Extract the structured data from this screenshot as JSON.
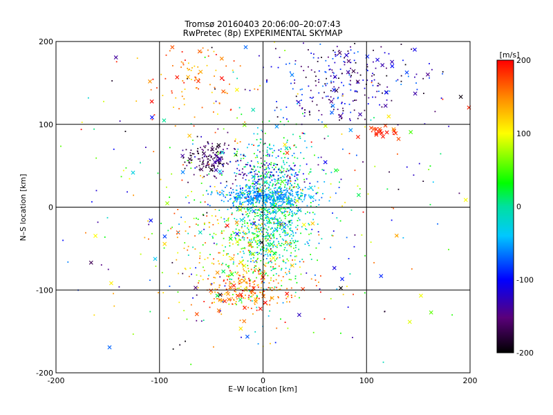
{
  "chart_data": {
    "type": "scatter",
    "title": "Tromsø 20160403 20:06:00–20:07:43",
    "subtitle": "RwPretec (8p) EXPERIMENTAL SKYMAP",
    "xlabel": "E–W location [km]",
    "ylabel": "N–S location [km]",
    "xlim": [
      -200,
      200
    ],
    "ylim": [
      -200,
      200
    ],
    "xticks": [
      -200,
      -100,
      0,
      100,
      200
    ],
    "yticks": [
      -200,
      -100,
      0,
      100,
      200
    ],
    "grid_lines": {
      "x": [
        -100,
        0,
        100
      ],
      "y": [
        -100,
        0,
        100
      ]
    },
    "colorbar": {
      "label": "[m/s]",
      "min": -200,
      "max": 200,
      "ticks": [
        -200,
        -100,
        0,
        100,
        200
      ],
      "colormap": "rainbow: black → purple → blue → cyan → green → yellow → orange → red"
    },
    "clusters": [
      {
        "cx": 10,
        "cy": 0,
        "sx": 18,
        "sy": 40,
        "n": 900,
        "vel": [
          -70,
          50
        ],
        "cross_frac": 0.03
      },
      {
        "cx": 0,
        "cy": 12,
        "sx": 22,
        "sy": 6,
        "n": 350,
        "vel": [
          -75,
          -35
        ],
        "cross_frac": 0.03
      },
      {
        "cx": -50,
        "cy": 60,
        "sx": 12,
        "sy": 9,
        "n": 160,
        "vel": [
          -200,
          -130
        ],
        "cross_frac": 0.08
      },
      {
        "cx": 75,
        "cy": 155,
        "sx": 38,
        "sy": 30,
        "n": 280,
        "vel": [
          -200,
          -60
        ],
        "cross_frac": 0.12
      },
      {
        "cx": -65,
        "cy": 160,
        "sx": 28,
        "sy": 25,
        "n": 90,
        "vel": [
          110,
          200
        ],
        "cross_frac": 0.15
      },
      {
        "cx": -15,
        "cy": -100,
        "sx": 22,
        "sy": 15,
        "n": 220,
        "vel": [
          110,
          200
        ],
        "cross_frac": 0.12
      },
      {
        "cx": -20,
        "cy": -50,
        "sx": 30,
        "sy": 35,
        "n": 350,
        "vel": [
          -20,
          180
        ],
        "cross_frac": 0.05
      },
      {
        "cx": 0,
        "cy": 40,
        "sx": 25,
        "sy": 12,
        "n": 110,
        "vel": [
          -180,
          -80
        ],
        "cross_frac": 0.08
      },
      {
        "cx": 115,
        "cy": 92,
        "sx": 9,
        "sy": 5,
        "n": 18,
        "vel": [
          170,
          200
        ],
        "cross_frac": 0.5
      },
      {
        "cx": 0,
        "cy": 0,
        "sx": 95,
        "sy": 105,
        "n": 420,
        "vel": [
          -200,
          200
        ],
        "cross_frac": 0.15
      }
    ]
  }
}
